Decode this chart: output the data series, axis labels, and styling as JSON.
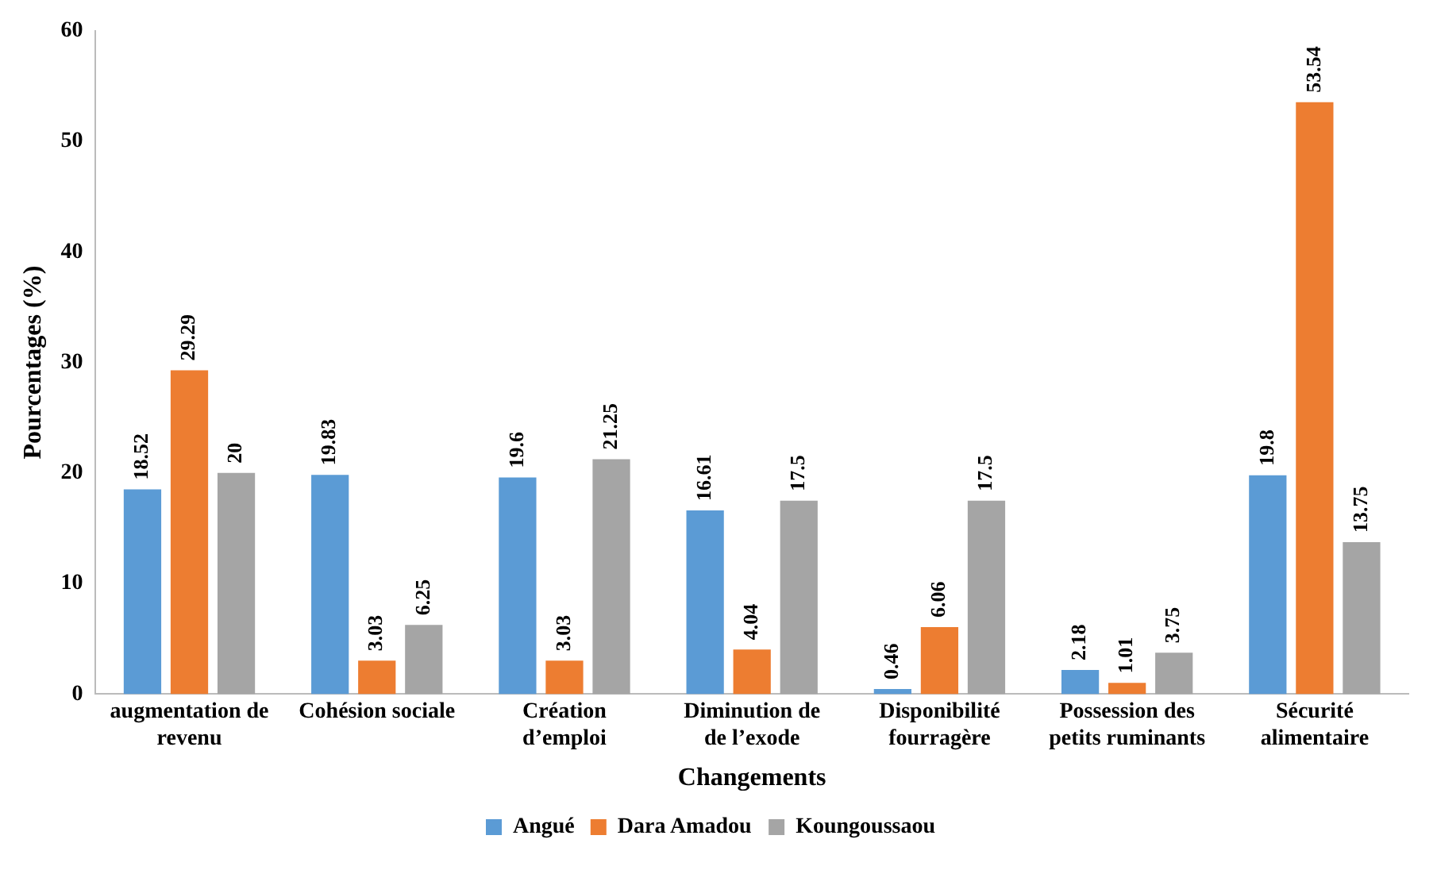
{
  "chart_data": {
    "type": "bar",
    "xlabel": "Changements",
    "ylabel": "Pourcentages (%)",
    "categories": [
      "augmentation de\nrevenu",
      "Cohésion sociale",
      "Création\nd’emploi",
      "Diminution de\nde l’exode",
      "Disponibilité\nfourragère",
      "Possession des\npetits ruminants",
      "Sécurité\nalimentaire"
    ],
    "series": [
      {
        "name": "Angué",
        "color": "#5b9bd5",
        "values": [
          18.52,
          19.83,
          19.6,
          16.61,
          0.46,
          2.18,
          19.8
        ]
      },
      {
        "name": "Dara Amadou",
        "color": "#ed7d31",
        "values": [
          29.29,
          3.03,
          3.03,
          4.04,
          6.06,
          1.01,
          53.54
        ]
      },
      {
        "name": "Koungoussaou",
        "color": "#a5a5a5",
        "values": [
          20,
          6.25,
          21.25,
          17.5,
          17.5,
          3.75,
          13.75
        ]
      }
    ],
    "ylim": [
      0,
      60
    ],
    "yticks": [
      0,
      10,
      20,
      30,
      40,
      50,
      60
    ],
    "grid": false,
    "legend": "bottom",
    "data_labels": true
  }
}
